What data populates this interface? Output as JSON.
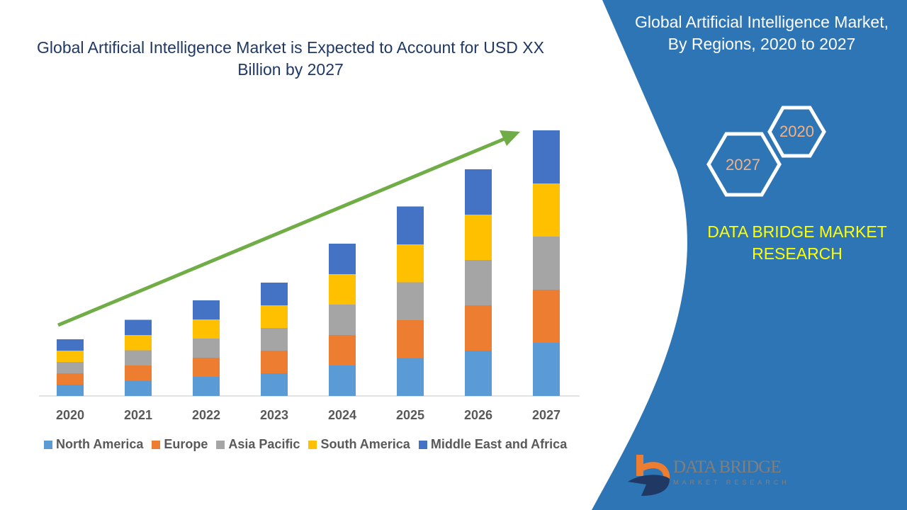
{
  "left_title": "Global Artificial Intelligence Market is Expected to Account for USD XX Billion by 2027",
  "right_panel": {
    "title": "Global Artificial Intelligence Market, By Regions, 2020 to 2027",
    "hex_labels": [
      "2020",
      "2027"
    ],
    "brand": "DATA BRIDGE MARKET RESEARCH",
    "logo_text": "DATA BRIDGE",
    "logo_subtext": "MARKET RESEARCH",
    "color": "#2E75B6"
  },
  "chart_data": {
    "type": "bar",
    "stacked": true,
    "categories": [
      "2020",
      "2021",
      "2022",
      "2023",
      "2024",
      "2025",
      "2026",
      "2027"
    ],
    "series": [
      {
        "name": "North America",
        "color": "#5B9BD5",
        "values": [
          3.2,
          4.3,
          5.4,
          6.4,
          8.6,
          10.7,
          12.8,
          15
        ]
      },
      {
        "name": "Europe",
        "color": "#ED7D31",
        "values": [
          3.2,
          4.3,
          5.4,
          6.4,
          8.6,
          10.7,
          12.8,
          15
        ]
      },
      {
        "name": "Asia Pacific",
        "color": "#A5A5A5",
        "values": [
          3.2,
          4.3,
          5.4,
          6.4,
          8.6,
          10.7,
          12.8,
          15
        ]
      },
      {
        "name": "South America",
        "color": "#FFC000",
        "values": [
          3.2,
          4.3,
          5.4,
          6.4,
          8.6,
          10.7,
          12.8,
          15
        ]
      },
      {
        "name": "Middle East and Africa",
        "color": "#4472C4",
        "values": [
          3.2,
          4.3,
          5.4,
          6.4,
          8.6,
          10.7,
          12.8,
          15
        ]
      }
    ],
    "ylim": [
      0,
      75
    ],
    "y_axis_shown": false,
    "grid": false,
    "legend": "bottom",
    "trend_arrow_color": "#70AD47"
  }
}
